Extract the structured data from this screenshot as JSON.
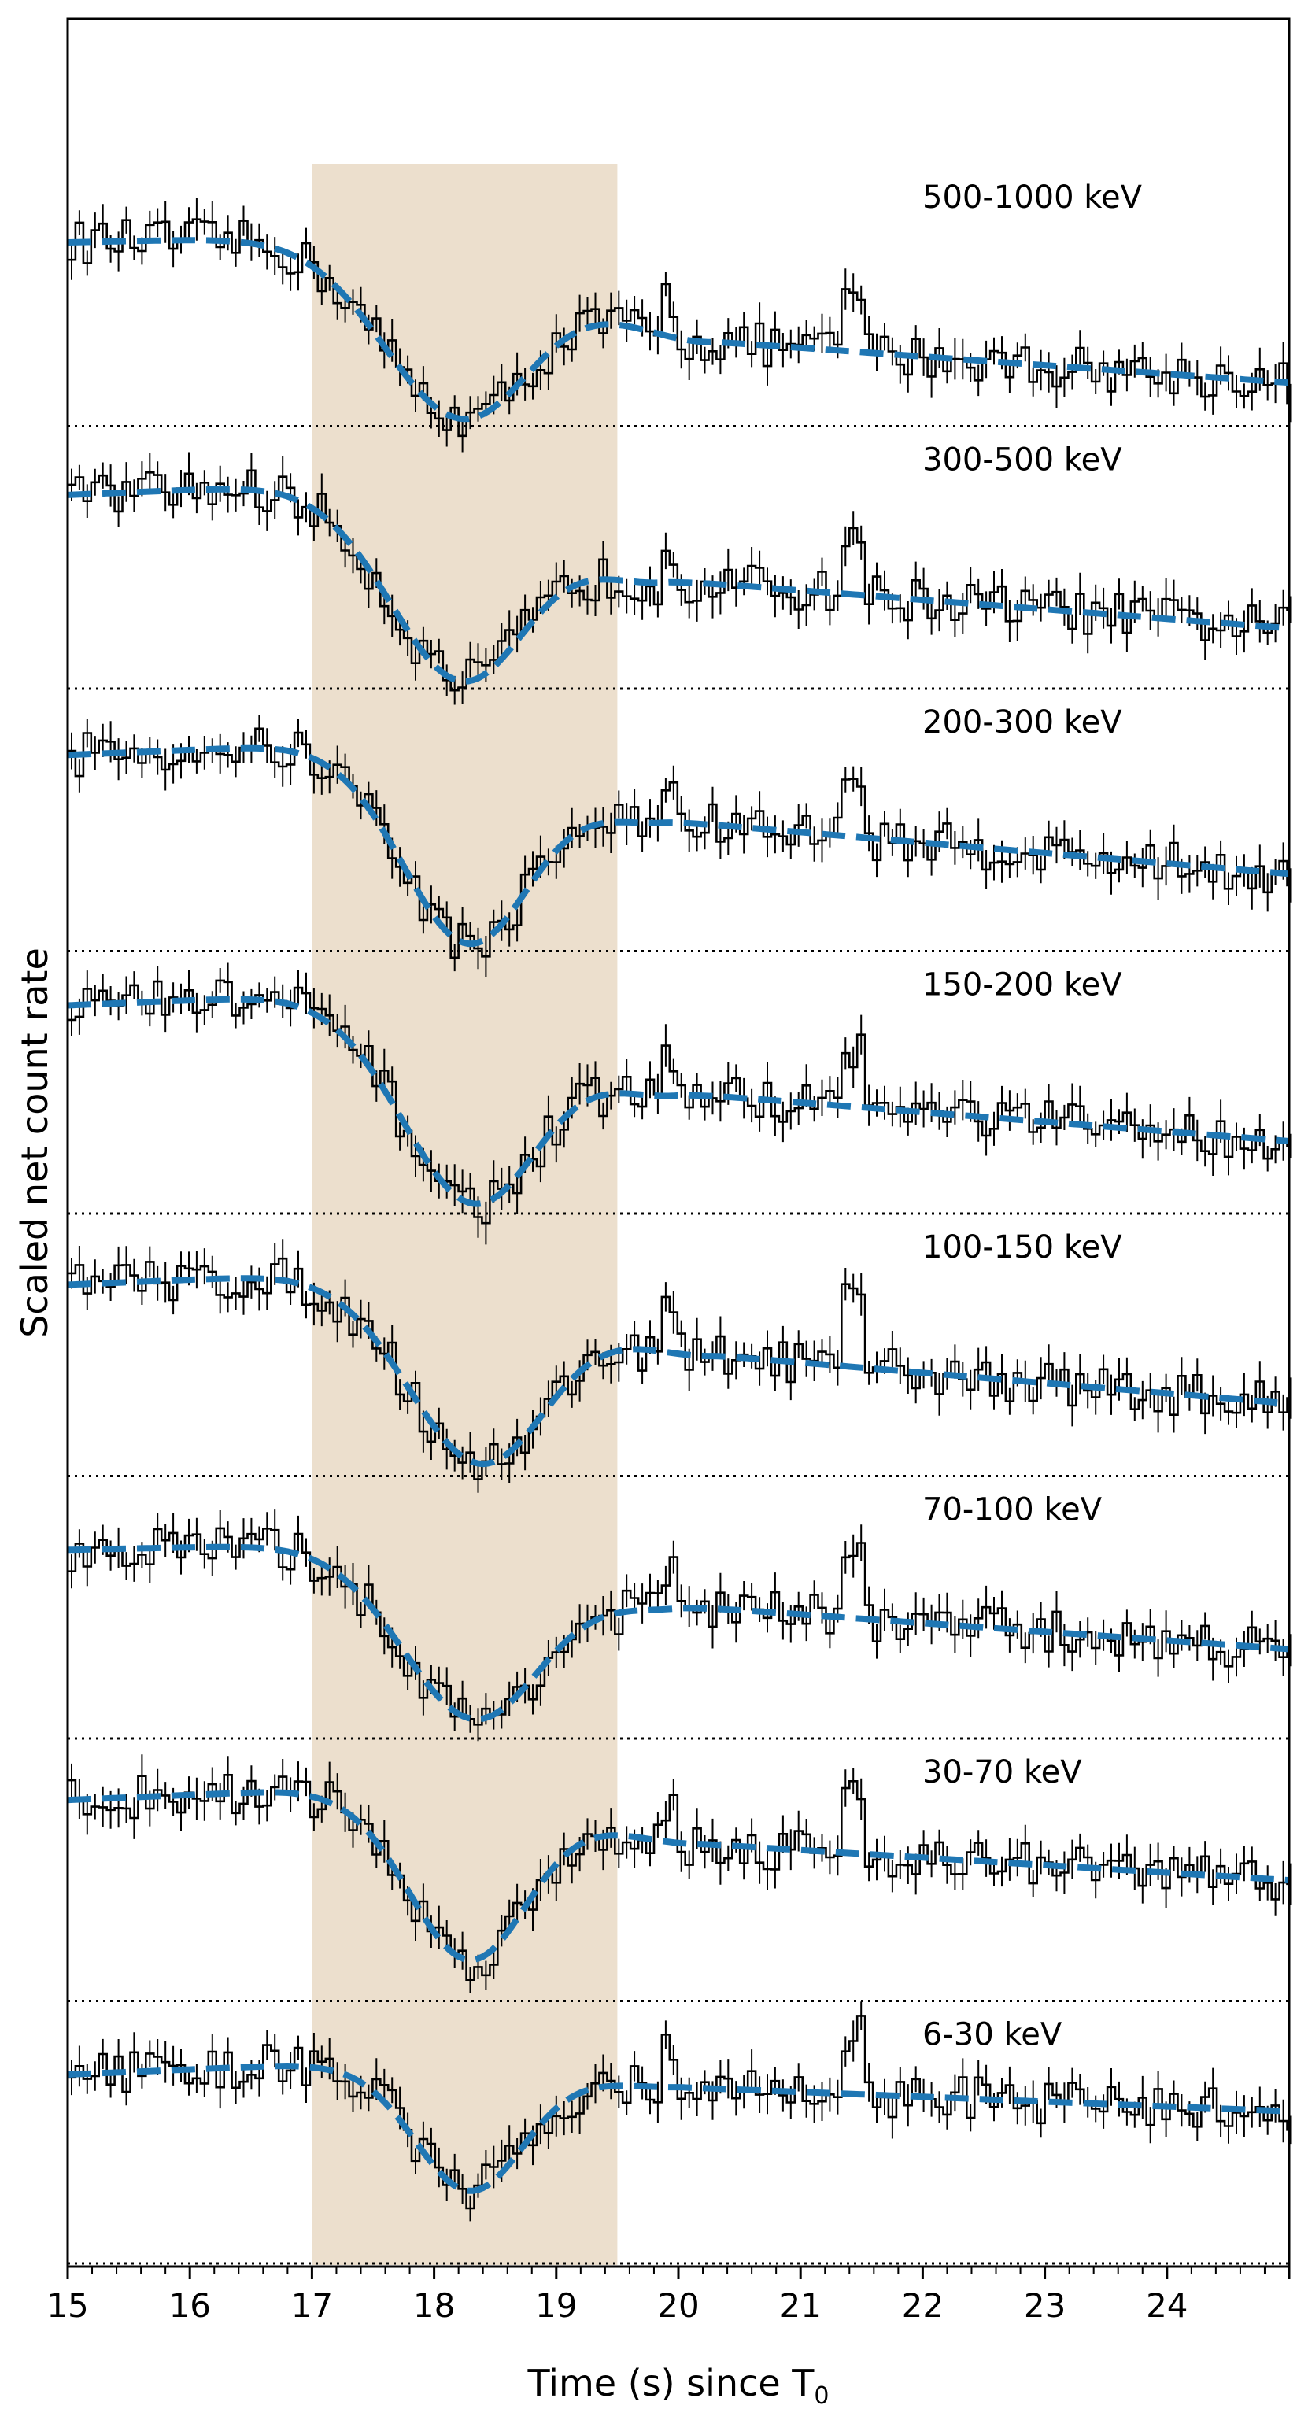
{
  "chart_data": {
    "type": "line",
    "xlabel_main": "Time (s) since T",
    "xlabel_sub": "0",
    "ylabel": "Scaled net count rate",
    "xlim": [
      15,
      25
    ],
    "xticks": [
      "15",
      "16",
      "17",
      "18",
      "19",
      "20",
      "21",
      "22",
      "23",
      "24"
    ],
    "shaded_interval": [
      17.0,
      19.5
    ],
    "shade_color": "#ecdfcd",
    "data_color": "#000000",
    "model_color": "#1f77b4",
    "model_style": "dashed",
    "baseline_style": "dotted",
    "panels": [
      {
        "label": "500-1000 keV",
        "model": {
          "start_level": 0.78,
          "dip_center": 18.25,
          "dip_width": 0.65,
          "dip_min": 0.03,
          "peak_time": 20.3,
          "peak_level": 0.35,
          "end_level": 0.18
        }
      },
      {
        "label": "300-500 keV",
        "model": {
          "start_level": 0.84,
          "dip_center": 18.25,
          "dip_width": 0.6,
          "dip_min": 0.03,
          "peak_time": 19.9,
          "peak_level": 0.45,
          "end_level": 0.25
        }
      },
      {
        "label": "200-300 keV",
        "model": {
          "start_level": 0.85,
          "dip_center": 18.3,
          "dip_width": 0.55,
          "dip_min": 0.03,
          "peak_time": 19.9,
          "peak_level": 0.54,
          "end_level": 0.32
        }
      },
      {
        "label": "150-200 keV",
        "model": {
          "start_level": 0.9,
          "dip_center": 18.35,
          "dip_width": 0.6,
          "dip_min": 0.04,
          "peak_time": 20.0,
          "peak_level": 0.5,
          "end_level": 0.3
        }
      },
      {
        "label": "100-150 keV",
        "model": {
          "start_level": 0.83,
          "dip_center": 18.4,
          "dip_width": 0.6,
          "dip_min": 0.05,
          "peak_time": 20.3,
          "peak_level": 0.5,
          "end_level": 0.3
        }
      },
      {
        "label": "70-100 keV",
        "model": {
          "start_level": 0.8,
          "dip_center": 18.35,
          "dip_width": 0.6,
          "dip_min": 0.08,
          "peak_time": 20.0,
          "peak_level": 0.55,
          "end_level": 0.37
        }
      },
      {
        "label": "30-70 keV",
        "model": {
          "start_level": 0.87,
          "dip_center": 18.3,
          "dip_width": 0.5,
          "dip_min": 0.17,
          "peak_time": 20.2,
          "peak_level": 0.65,
          "end_level": 0.5
        }
      },
      {
        "label": "6-30 keV",
        "model": {
          "start_level": 0.82,
          "dip_center": 18.3,
          "dip_width": 0.45,
          "dip_min": 0.3,
          "peak_time": 20.0,
          "peak_level": 0.73,
          "end_level": 0.63
        }
      }
    ]
  }
}
